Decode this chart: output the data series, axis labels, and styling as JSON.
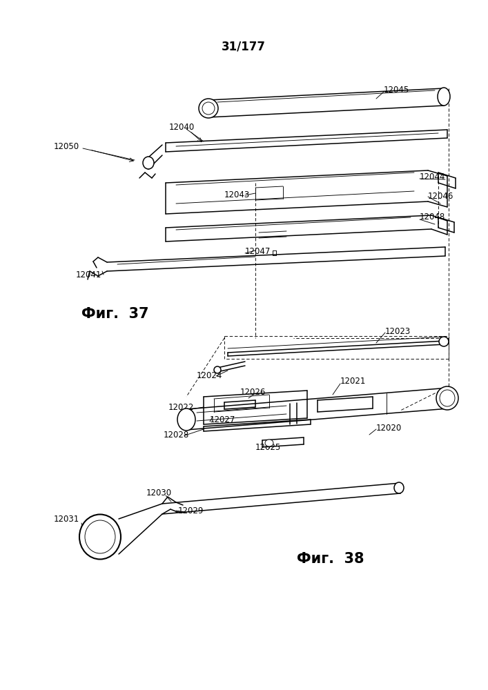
{
  "title": "31/177",
  "fig37_label": "Фиг.  37",
  "fig38_label": "Фиг.  38",
  "bg_color": "#ffffff",
  "line_color": "#000000",
  "title_fontsize": 12,
  "fig_label_fontsize": 15,
  "annotation_fontsize": 8.5,
  "lw_main": 1.1,
  "lw_thin": 0.65,
  "lw_thick": 1.5
}
